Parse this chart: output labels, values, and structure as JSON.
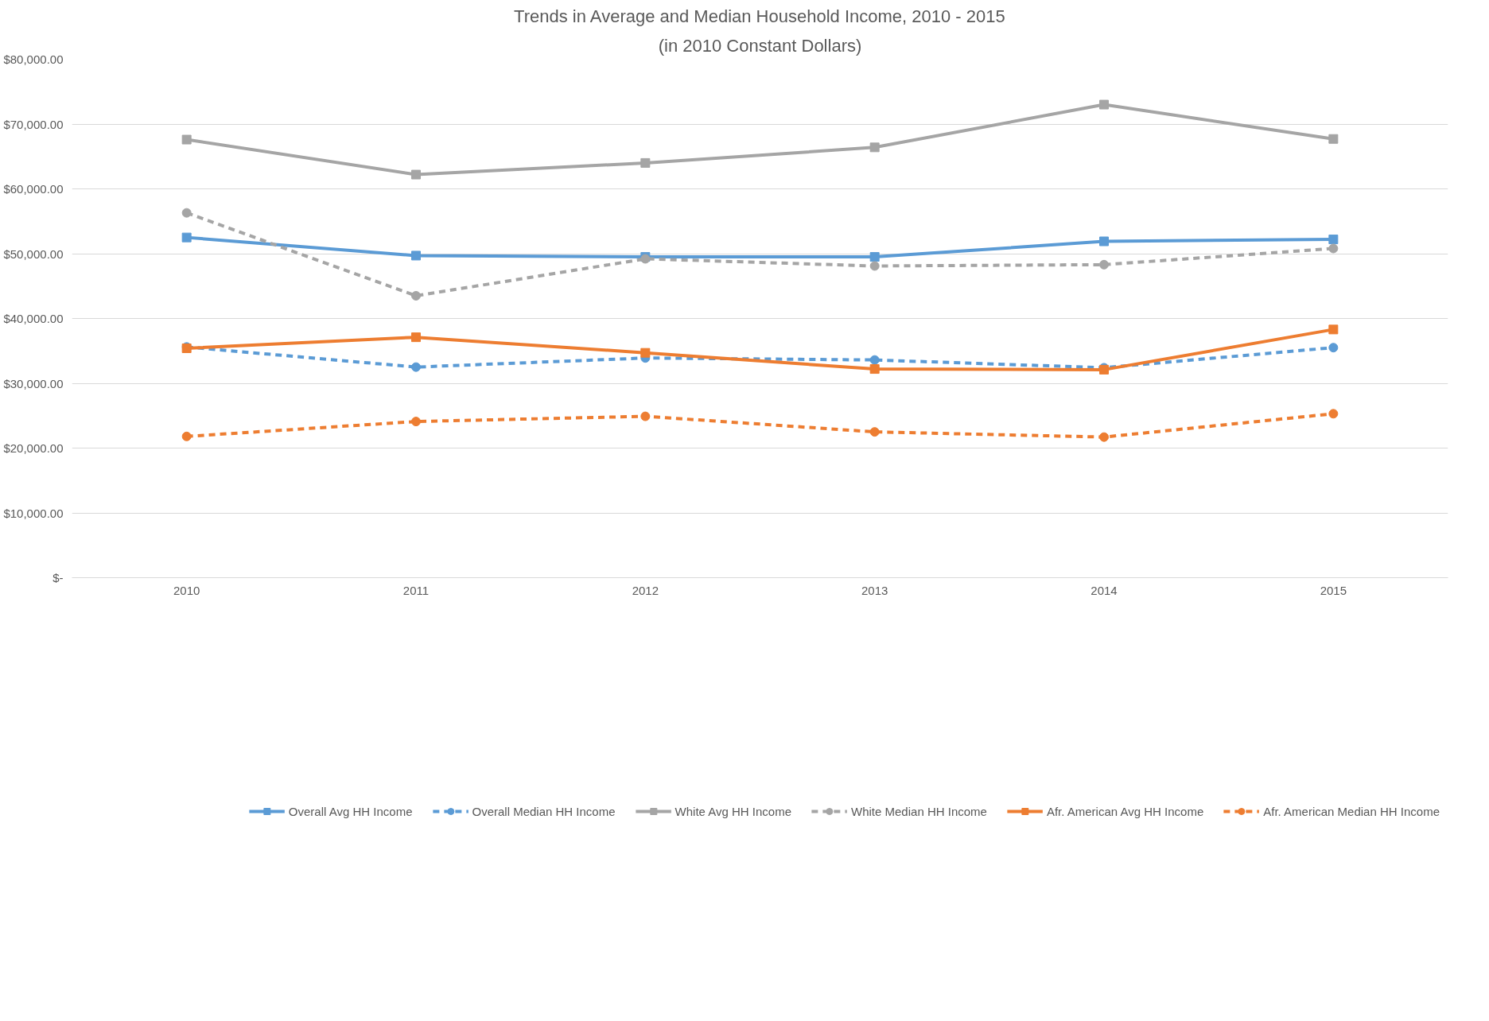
{
  "chart_data": {
    "type": "line",
    "title": "Trends in Average and Median Household Income, 2010 - 2015",
    "subtitle": "(in 2010 Constant Dollars)",
    "categories": [
      "2010",
      "2011",
      "2012",
      "2013",
      "2014",
      "2015"
    ],
    "ylim": [
      0,
      80000
    ],
    "yticks": [
      {
        "value": 0,
        "label": "$-"
      },
      {
        "value": 10000,
        "label": "$10,000.00"
      },
      {
        "value": 20000,
        "label": "$20,000.00"
      },
      {
        "value": 30000,
        "label": "$30,000.00"
      },
      {
        "value": 40000,
        "label": "$40,000.00"
      },
      {
        "value": 50000,
        "label": "$50,000.00"
      },
      {
        "value": 60000,
        "label": "$60,000.00"
      },
      {
        "value": 70000,
        "label": "$70,000.00"
      },
      {
        "value": 80000,
        "label": "$80,000.00"
      }
    ],
    "grid": "y",
    "legend": "bottom",
    "series": [
      {
        "name": "Overall Avg HH Income",
        "color": "#5b9bd5",
        "marker": "square",
        "line_style": "solid",
        "values": [
          52500,
          49700,
          49500,
          49500,
          51900,
          52200
        ]
      },
      {
        "name": "Overall Median HH Income",
        "color": "#5b9bd5",
        "marker": "circle",
        "line_style": "dashed",
        "values": [
          35600,
          32500,
          33900,
          33600,
          32400,
          35500
        ]
      },
      {
        "name": "White Avg HH Income",
        "color": "#a5a5a5",
        "marker": "square",
        "line_style": "solid",
        "values": [
          67600,
          62200,
          64000,
          66400,
          73000,
          67700
        ]
      },
      {
        "name": "White Median HH Income",
        "color": "#a5a5a5",
        "marker": "circle",
        "line_style": "dashed",
        "values": [
          56300,
          43500,
          49200,
          48100,
          48300,
          50800
        ]
      },
      {
        "name": "Afr. American Avg HH Income",
        "color": "#ed7d31",
        "marker": "square",
        "line_style": "solid",
        "values": [
          35400,
          37100,
          34700,
          32200,
          32100,
          38300
        ]
      },
      {
        "name": "Afr. American Median HH Income",
        "color": "#ed7d31",
        "marker": "circle",
        "line_style": "dashed",
        "values": [
          21800,
          24100,
          24900,
          22500,
          21700,
          25300
        ]
      }
    ]
  }
}
